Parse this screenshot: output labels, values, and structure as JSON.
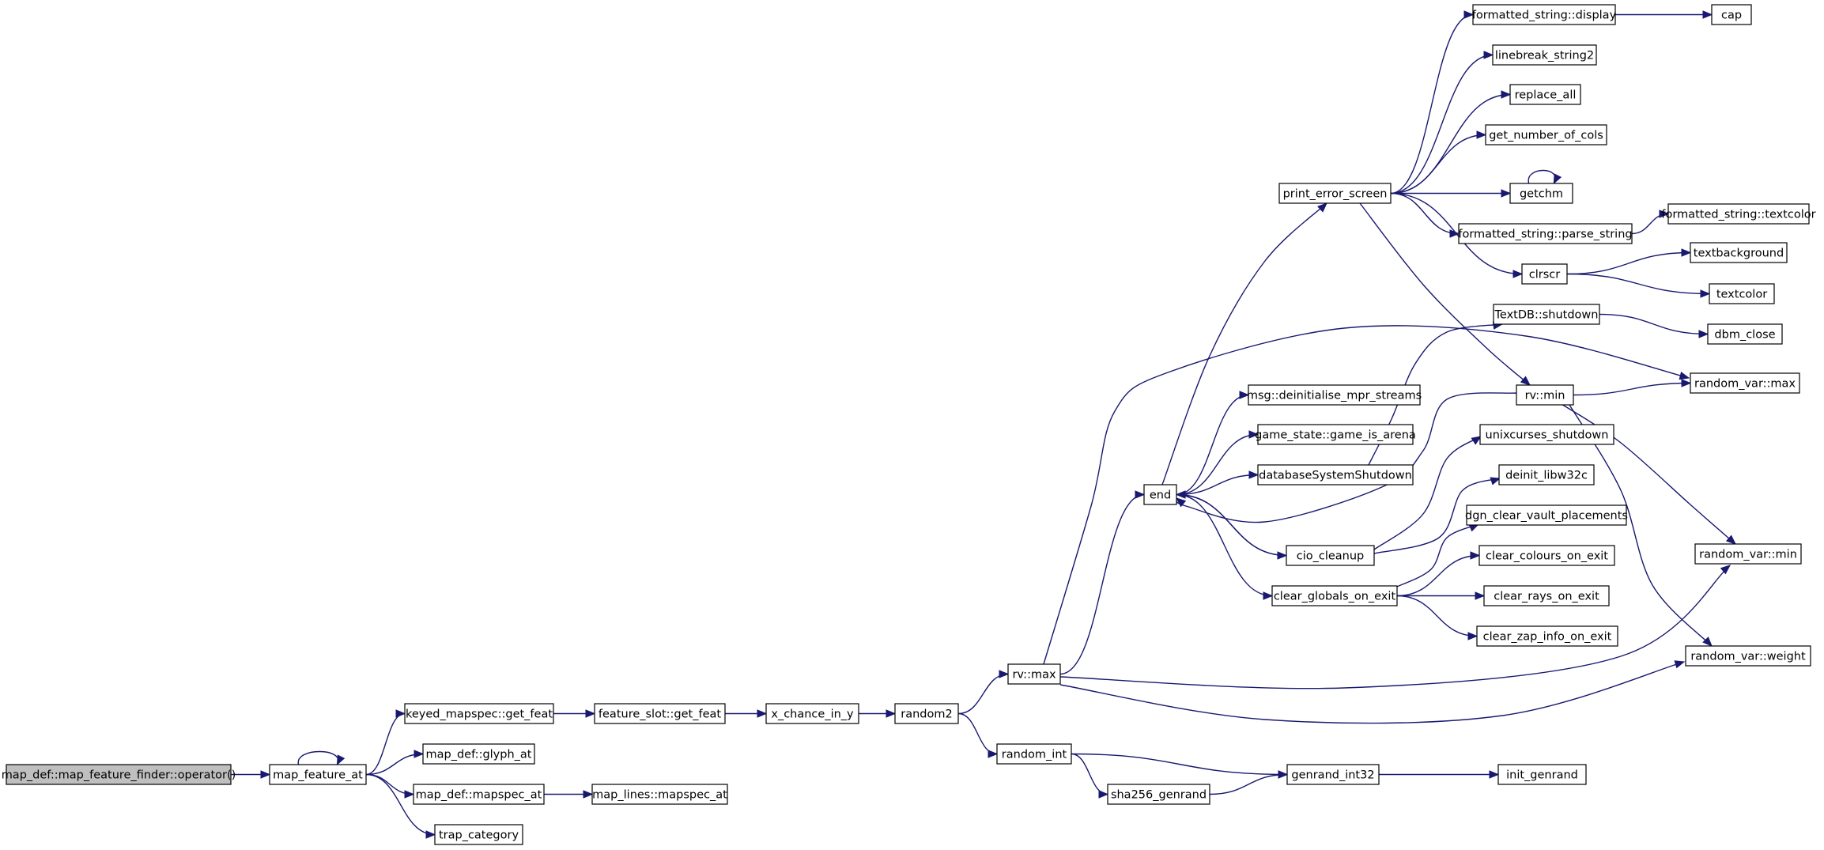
{
  "graph": {
    "nodes": [
      {
        "id": "n_root",
        "label": "map_def::map_feature_finder::operator()",
        "root": true
      },
      {
        "id": "n_mfa",
        "label": "map_feature_at"
      },
      {
        "id": "n_kmgf",
        "label": "keyed_mapspec::get_feat"
      },
      {
        "id": "n_mdga",
        "label": "map_def::glyph_at"
      },
      {
        "id": "n_mdma",
        "label": "map_def::mapspec_at"
      },
      {
        "id": "n_tc",
        "label": "trap_category"
      },
      {
        "id": "n_fsgf",
        "label": "feature_slot::get_feat"
      },
      {
        "id": "n_mlma",
        "label": "map_lines::mapspec_at"
      },
      {
        "id": "n_xc",
        "label": "x_chance_in_y"
      },
      {
        "id": "n_r2",
        "label": "random2"
      },
      {
        "id": "n_rvmax",
        "label": "rv::max"
      },
      {
        "id": "n_ri",
        "label": "random_int"
      },
      {
        "id": "n_sha",
        "label": "sha256_genrand"
      },
      {
        "id": "n_gr32",
        "label": "genrand_int32"
      },
      {
        "id": "n_igr",
        "label": "init_genrand"
      },
      {
        "id": "n_end",
        "label": "end"
      },
      {
        "id": "n_pes",
        "label": "print_error_screen"
      },
      {
        "id": "n_msg",
        "label": "msg::deinitialise_mpr_streams"
      },
      {
        "id": "n_gsa",
        "label": "game_state::game_is_arena"
      },
      {
        "id": "n_dss",
        "label": "databaseSystemShutdown"
      },
      {
        "id": "n_cio",
        "label": "cio_cleanup"
      },
      {
        "id": "n_cgoe",
        "label": "clear_globals_on_exit"
      },
      {
        "id": "n_fsd",
        "label": "formatted_string::display"
      },
      {
        "id": "n_cap",
        "label": "cap"
      },
      {
        "id": "n_lbs",
        "label": "linebreak_string2"
      },
      {
        "id": "n_ra",
        "label": "replace_all"
      },
      {
        "id": "n_gnc",
        "label": "get_number_of_cols"
      },
      {
        "id": "n_getchm",
        "label": "getchm"
      },
      {
        "id": "n_fsps",
        "label": "formatted_string::parse_string"
      },
      {
        "id": "n_fstc",
        "label": "formatted_string::textcolor"
      },
      {
        "id": "n_clrscr",
        "label": "clrscr"
      },
      {
        "id": "n_tbg",
        "label": "textbackground"
      },
      {
        "id": "n_tcol",
        "label": "textcolor"
      },
      {
        "id": "n_tdbs",
        "label": "TextDB::shutdown"
      },
      {
        "id": "n_dbmc",
        "label": "dbm_close"
      },
      {
        "id": "n_rvmin",
        "label": "rv::min"
      },
      {
        "id": "n_rvarmax",
        "label": "random_var::max"
      },
      {
        "id": "n_uxs",
        "label": "unixcurses_shutdown"
      },
      {
        "id": "n_dlw",
        "label": "deinit_libw32c"
      },
      {
        "id": "n_dcvp",
        "label": "dgn_clear_vault_placements"
      },
      {
        "id": "n_ccoe",
        "label": "clear_colours_on_exit"
      },
      {
        "id": "n_croe",
        "label": "clear_rays_on_exit"
      },
      {
        "id": "n_czioe",
        "label": "clear_zap_info_on_exit"
      },
      {
        "id": "n_rvarmin",
        "label": "random_var::min"
      },
      {
        "id": "n_rvarw",
        "label": "random_var::weight"
      }
    ],
    "edges": [
      [
        "n_root",
        "n_mfa"
      ],
      [
        "n_mfa",
        "n_mfa"
      ],
      [
        "n_mfa",
        "n_kmgf"
      ],
      [
        "n_mfa",
        "n_mdga"
      ],
      [
        "n_mfa",
        "n_mdma"
      ],
      [
        "n_mfa",
        "n_tc"
      ],
      [
        "n_kmgf",
        "n_fsgf"
      ],
      [
        "n_mdma",
        "n_mlma"
      ],
      [
        "n_fsgf",
        "n_xc"
      ],
      [
        "n_xc",
        "n_r2"
      ],
      [
        "n_r2",
        "n_rvmax"
      ],
      [
        "n_r2",
        "n_ri"
      ],
      [
        "n_ri",
        "n_gr32"
      ],
      [
        "n_ri",
        "n_sha"
      ],
      [
        "n_sha",
        "n_gr32"
      ],
      [
        "n_gr32",
        "n_igr"
      ],
      [
        "n_rvmax",
        "n_end"
      ],
      [
        "n_rvmax",
        "n_rvarmax"
      ],
      [
        "n_rvmax",
        "n_rvarmin"
      ],
      [
        "n_rvmax",
        "n_rvarw"
      ],
      [
        "n_end",
        "n_pes"
      ],
      [
        "n_end",
        "n_msg"
      ],
      [
        "n_end",
        "n_gsa"
      ],
      [
        "n_end",
        "n_dss"
      ],
      [
        "n_end",
        "n_cio"
      ],
      [
        "n_end",
        "n_cgoe"
      ],
      [
        "n_pes",
        "n_fsd"
      ],
      [
        "n_pes",
        "n_lbs"
      ],
      [
        "n_pes",
        "n_ra"
      ],
      [
        "n_pes",
        "n_gnc"
      ],
      [
        "n_pes",
        "n_getchm"
      ],
      [
        "n_pes",
        "n_fsps"
      ],
      [
        "n_pes",
        "n_clrscr"
      ],
      [
        "n_pes",
        "n_rvmin"
      ],
      [
        "n_fsd",
        "n_cap"
      ],
      [
        "n_getchm",
        "n_getchm"
      ],
      [
        "n_fsps",
        "n_fstc"
      ],
      [
        "n_clrscr",
        "n_tbg"
      ],
      [
        "n_clrscr",
        "n_tcol"
      ],
      [
        "n_dss",
        "n_tdbs"
      ],
      [
        "n_tdbs",
        "n_dbmc"
      ],
      [
        "n_cio",
        "n_end"
      ],
      [
        "n_cio",
        "n_uxs"
      ],
      [
        "n_cio",
        "n_dlw"
      ],
      [
        "n_rvmin",
        "n_end"
      ],
      [
        "n_rvmin",
        "n_rvarmax"
      ],
      [
        "n_rvmin",
        "n_rvarmin"
      ],
      [
        "n_rvmin",
        "n_rvarw"
      ],
      [
        "n_cgoe",
        "n_dcvp"
      ],
      [
        "n_cgoe",
        "n_ccoe"
      ],
      [
        "n_cgoe",
        "n_croe"
      ],
      [
        "n_cgoe",
        "n_czioe"
      ]
    ]
  }
}
